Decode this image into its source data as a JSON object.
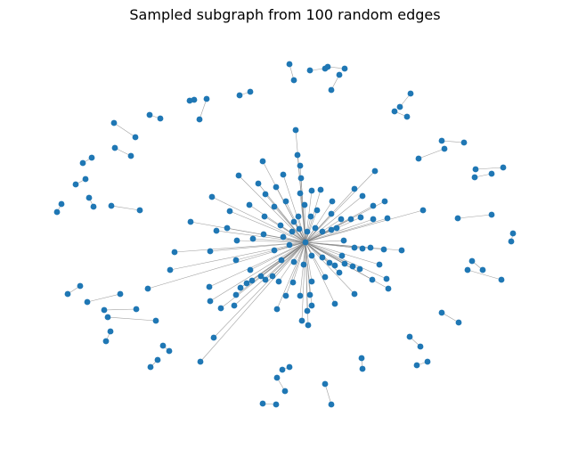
{
  "title": "Sampled subgraph from 100 random edges",
  "colors": {
    "node": "#1f77b4",
    "edge": "#808080",
    "background": "#ffffff"
  },
  "legend": "none"
}
